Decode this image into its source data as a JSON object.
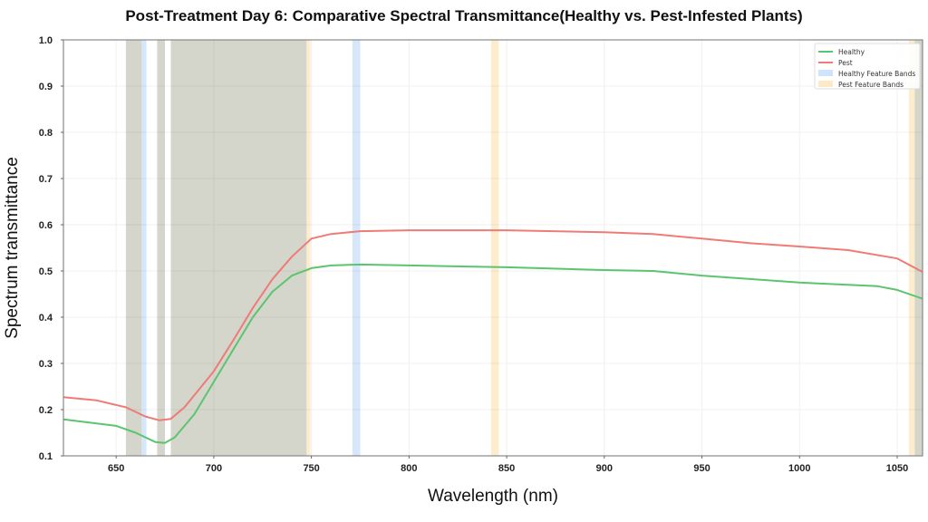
{
  "chart_data": {
    "type": "line",
    "title": "Post-Treatment Day 6: Comparative Spectral Transmittance(Healthy vs. Pest-Infested Plants)",
    "xlabel": "Wavelength (nm)",
    "ylabel": "Spectrum transmittance",
    "xlim": [
      623,
      1063
    ],
    "ylim": [
      0.1,
      1.0
    ],
    "xticks": [
      650,
      700,
      750,
      800,
      850,
      900,
      950,
      1000,
      1050
    ],
    "yticks": [
      0.1,
      0.2,
      0.3,
      0.4,
      0.5,
      0.6,
      0.7,
      0.8,
      0.9,
      1.0
    ],
    "ytick_labels": [
      "0.1",
      "0.2",
      "0.3",
      "0.4",
      "0.5",
      "0.6",
      "0.7",
      "0.8",
      "0.9",
      "1.0"
    ],
    "grid": true,
    "legend_position": "top-right",
    "series": [
      {
        "name": "Healthy",
        "color": "#5cc46f",
        "x": [
          623,
          650,
          660,
          670,
          675,
          680,
          690,
          700,
          710,
          720,
          730,
          740,
          750,
          760,
          775,
          800,
          850,
          900,
          925,
          950,
          1000,
          1040,
          1050,
          1063
        ],
        "y": [
          0.179,
          0.165,
          0.15,
          0.13,
          0.128,
          0.14,
          0.19,
          0.26,
          0.33,
          0.4,
          0.455,
          0.49,
          0.506,
          0.512,
          0.514,
          0.512,
          0.508,
          0.502,
          0.5,
          0.49,
          0.475,
          0.467,
          0.459,
          0.44
        ]
      },
      {
        "name": "Pest",
        "color": "#ef7b76",
        "x": [
          623,
          640,
          655,
          665,
          672,
          678,
          685,
          700,
          710,
          720,
          730,
          740,
          750,
          760,
          775,
          800,
          850,
          900,
          925,
          950,
          975,
          1000,
          1025,
          1050,
          1063
        ],
        "y": [
          0.227,
          0.22,
          0.205,
          0.185,
          0.177,
          0.18,
          0.205,
          0.283,
          0.35,
          0.42,
          0.482,
          0.531,
          0.57,
          0.58,
          0.586,
          0.588,
          0.588,
          0.584,
          0.58,
          0.57,
          0.56,
          0.553,
          0.545,
          0.527,
          0.498
        ]
      }
    ],
    "bands": [
      {
        "name": "Healthy Feature Bands",
        "color": "#cfe3fb",
        "ranges": [
          [
            655,
            665.5
          ],
          [
            671,
            675
          ],
          [
            678,
            747.5
          ],
          [
            771,
            775
          ],
          [
            1059,
            1063
          ]
        ]
      },
      {
        "name": "Pest Feature Bands",
        "color": "#fde9c6",
        "ranges": [
          [
            655,
            663
          ],
          [
            671,
            675
          ],
          [
            678,
            749.5
          ],
          [
            842,
            846
          ],
          [
            1056,
            1063
          ]
        ]
      }
    ]
  }
}
